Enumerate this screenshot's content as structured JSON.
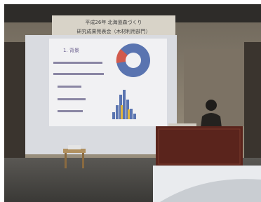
{
  "banner": {
    "line1": "平成26年 北海道森づくり",
    "line2": "研究成果発表会（木材利用部門）"
  },
  "slide": {
    "heading": "1. 背景"
  }
}
